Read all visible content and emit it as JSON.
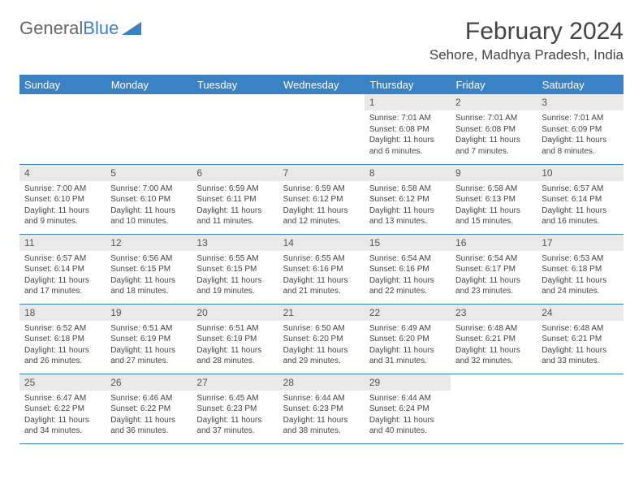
{
  "logo": {
    "text1": "General",
    "text2": "Blue"
  },
  "title": "February 2024",
  "location": "Sehore, Madhya Pradesh, India",
  "colors": {
    "header_bg": "#3b82c4",
    "daynum_bg": "#e9e9e9",
    "text": "#444444",
    "border": "#3b82c4"
  },
  "weekdays": [
    "Sunday",
    "Monday",
    "Tuesday",
    "Wednesday",
    "Thursday",
    "Friday",
    "Saturday"
  ],
  "weeks": [
    [
      null,
      null,
      null,
      null,
      {
        "n": "1",
        "sunrise": "Sunrise: 7:01 AM",
        "sunset": "Sunset: 6:08 PM",
        "daylight": "Daylight: 11 hours and 6 minutes."
      },
      {
        "n": "2",
        "sunrise": "Sunrise: 7:01 AM",
        "sunset": "Sunset: 6:08 PM",
        "daylight": "Daylight: 11 hours and 7 minutes."
      },
      {
        "n": "3",
        "sunrise": "Sunrise: 7:01 AM",
        "sunset": "Sunset: 6:09 PM",
        "daylight": "Daylight: 11 hours and 8 minutes."
      }
    ],
    [
      {
        "n": "4",
        "sunrise": "Sunrise: 7:00 AM",
        "sunset": "Sunset: 6:10 PM",
        "daylight": "Daylight: 11 hours and 9 minutes."
      },
      {
        "n": "5",
        "sunrise": "Sunrise: 7:00 AM",
        "sunset": "Sunset: 6:10 PM",
        "daylight": "Daylight: 11 hours and 10 minutes."
      },
      {
        "n": "6",
        "sunrise": "Sunrise: 6:59 AM",
        "sunset": "Sunset: 6:11 PM",
        "daylight": "Daylight: 11 hours and 11 minutes."
      },
      {
        "n": "7",
        "sunrise": "Sunrise: 6:59 AM",
        "sunset": "Sunset: 6:12 PM",
        "daylight": "Daylight: 11 hours and 12 minutes."
      },
      {
        "n": "8",
        "sunrise": "Sunrise: 6:58 AM",
        "sunset": "Sunset: 6:12 PM",
        "daylight": "Daylight: 11 hours and 13 minutes."
      },
      {
        "n": "9",
        "sunrise": "Sunrise: 6:58 AM",
        "sunset": "Sunset: 6:13 PM",
        "daylight": "Daylight: 11 hours and 15 minutes."
      },
      {
        "n": "10",
        "sunrise": "Sunrise: 6:57 AM",
        "sunset": "Sunset: 6:14 PM",
        "daylight": "Daylight: 11 hours and 16 minutes."
      }
    ],
    [
      {
        "n": "11",
        "sunrise": "Sunrise: 6:57 AM",
        "sunset": "Sunset: 6:14 PM",
        "daylight": "Daylight: 11 hours and 17 minutes."
      },
      {
        "n": "12",
        "sunrise": "Sunrise: 6:56 AM",
        "sunset": "Sunset: 6:15 PM",
        "daylight": "Daylight: 11 hours and 18 minutes."
      },
      {
        "n": "13",
        "sunrise": "Sunrise: 6:55 AM",
        "sunset": "Sunset: 6:15 PM",
        "daylight": "Daylight: 11 hours and 19 minutes."
      },
      {
        "n": "14",
        "sunrise": "Sunrise: 6:55 AM",
        "sunset": "Sunset: 6:16 PM",
        "daylight": "Daylight: 11 hours and 21 minutes."
      },
      {
        "n": "15",
        "sunrise": "Sunrise: 6:54 AM",
        "sunset": "Sunset: 6:16 PM",
        "daylight": "Daylight: 11 hours and 22 minutes."
      },
      {
        "n": "16",
        "sunrise": "Sunrise: 6:54 AM",
        "sunset": "Sunset: 6:17 PM",
        "daylight": "Daylight: 11 hours and 23 minutes."
      },
      {
        "n": "17",
        "sunrise": "Sunrise: 6:53 AM",
        "sunset": "Sunset: 6:18 PM",
        "daylight": "Daylight: 11 hours and 24 minutes."
      }
    ],
    [
      {
        "n": "18",
        "sunrise": "Sunrise: 6:52 AM",
        "sunset": "Sunset: 6:18 PM",
        "daylight": "Daylight: 11 hours and 26 minutes."
      },
      {
        "n": "19",
        "sunrise": "Sunrise: 6:51 AM",
        "sunset": "Sunset: 6:19 PM",
        "daylight": "Daylight: 11 hours and 27 minutes."
      },
      {
        "n": "20",
        "sunrise": "Sunrise: 6:51 AM",
        "sunset": "Sunset: 6:19 PM",
        "daylight": "Daylight: 11 hours and 28 minutes."
      },
      {
        "n": "21",
        "sunrise": "Sunrise: 6:50 AM",
        "sunset": "Sunset: 6:20 PM",
        "daylight": "Daylight: 11 hours and 29 minutes."
      },
      {
        "n": "22",
        "sunrise": "Sunrise: 6:49 AM",
        "sunset": "Sunset: 6:20 PM",
        "daylight": "Daylight: 11 hours and 31 minutes."
      },
      {
        "n": "23",
        "sunrise": "Sunrise: 6:48 AM",
        "sunset": "Sunset: 6:21 PM",
        "daylight": "Daylight: 11 hours and 32 minutes."
      },
      {
        "n": "24",
        "sunrise": "Sunrise: 6:48 AM",
        "sunset": "Sunset: 6:21 PM",
        "daylight": "Daylight: 11 hours and 33 minutes."
      }
    ],
    [
      {
        "n": "25",
        "sunrise": "Sunrise: 6:47 AM",
        "sunset": "Sunset: 6:22 PM",
        "daylight": "Daylight: 11 hours and 34 minutes."
      },
      {
        "n": "26",
        "sunrise": "Sunrise: 6:46 AM",
        "sunset": "Sunset: 6:22 PM",
        "daylight": "Daylight: 11 hours and 36 minutes."
      },
      {
        "n": "27",
        "sunrise": "Sunrise: 6:45 AM",
        "sunset": "Sunset: 6:23 PM",
        "daylight": "Daylight: 11 hours and 37 minutes."
      },
      {
        "n": "28",
        "sunrise": "Sunrise: 6:44 AM",
        "sunset": "Sunset: 6:23 PM",
        "daylight": "Daylight: 11 hours and 38 minutes."
      },
      {
        "n": "29",
        "sunrise": "Sunrise: 6:44 AM",
        "sunset": "Sunset: 6:24 PM",
        "daylight": "Daylight: 11 hours and 40 minutes."
      },
      null,
      null
    ]
  ]
}
